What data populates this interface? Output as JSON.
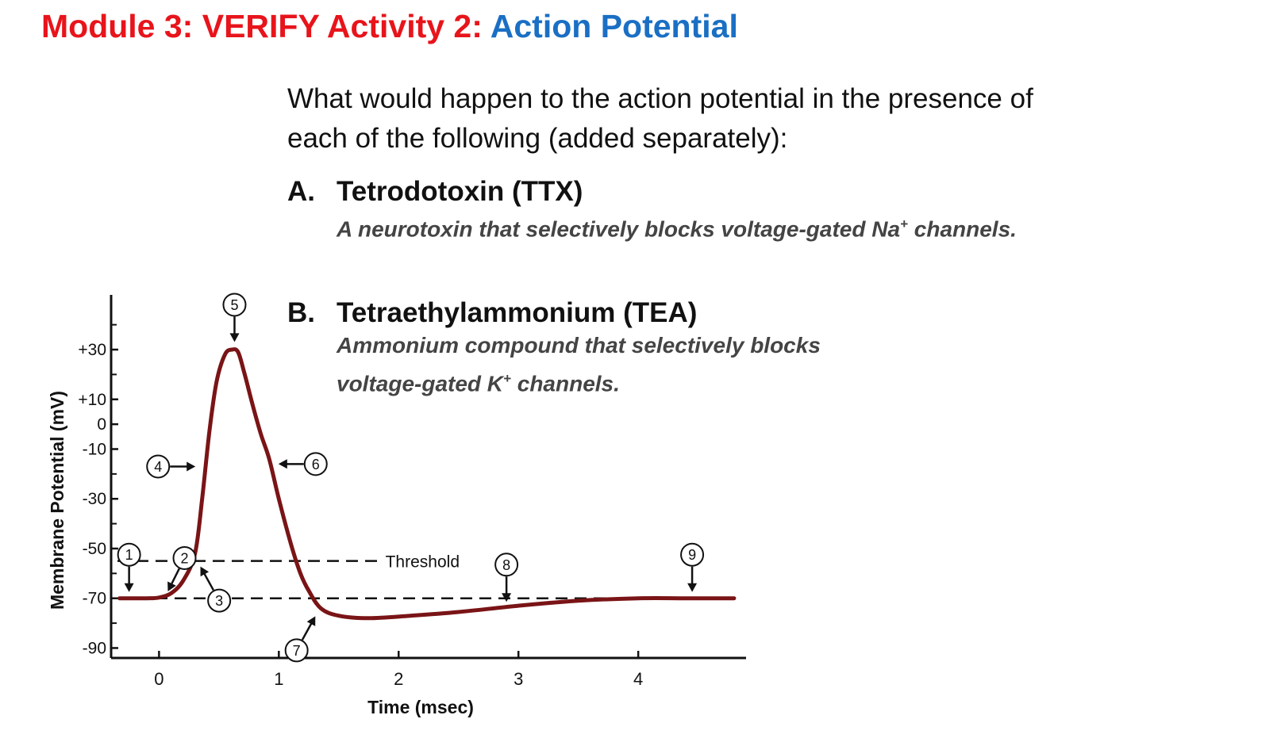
{
  "slide": {
    "title_prefix": "Module 3: VERIFY Activity 2: ",
    "title_accent": "Action Potential",
    "question": "What would happen to the action potential in the presence of each of the following (added separately):",
    "options": [
      {
        "letter": "A.",
        "name": "Tetrodotoxin (TTX)",
        "desc_before": "A neurotoxin that selectively blocks voltage-gated Na",
        "desc_sup": "+",
        "desc_after": " channels."
      },
      {
        "letter": "B.",
        "name": "Tetraethylammonium (TEA)",
        "desc_before": "Ammonium compound that selectively blocks voltage-gated K",
        "desc_sup": "+",
        "desc_after": " channels."
      }
    ]
  },
  "chart_data": {
    "type": "line",
    "xlabel": "Time (msec)",
    "ylabel": "Membrane Potential (mV)",
    "xlim": [
      -0.4,
      4.9
    ],
    "ylim": [
      -94,
      52
    ],
    "x_ticks": [
      0,
      1,
      2,
      3,
      4
    ],
    "x_tick_labels": [
      "0",
      "1",
      "2",
      "3",
      "4"
    ],
    "y_ticks": [
      30,
      10,
      0,
      -10,
      -30,
      -50,
      -70,
      -90
    ],
    "y_tick_labels": [
      "+30",
      "+10",
      "0",
      "-10",
      "-30",
      "-50",
      "-70",
      "-90"
    ],
    "y_minor_ticks": [
      40,
      20,
      -20,
      -40,
      -60,
      -80
    ],
    "series": [
      {
        "color": "#7a1416",
        "x": [
          -0.33,
          -0.1,
          0.0,
          0.1,
          0.2,
          0.3,
          0.36,
          0.42,
          0.48,
          0.55,
          0.61,
          0.66,
          0.71,
          0.78,
          0.85,
          0.92,
          1.0,
          1.1,
          1.18,
          1.25,
          1.35,
          1.5,
          1.75,
          2.1,
          2.5,
          3.0,
          3.5,
          4.0,
          4.4,
          4.8
        ],
        "y": [
          -70,
          -70,
          -69.7,
          -68,
          -63,
          -52,
          -30,
          -3,
          17,
          28,
          30,
          29,
          21,
          8,
          -4,
          -14,
          -30,
          -48,
          -60,
          -67,
          -74,
          -77,
          -78,
          -77,
          -75.5,
          -73,
          -71,
          -70,
          -70,
          -70
        ]
      }
    ],
    "reference_lines": [
      {
        "y": -55,
        "label": "Threshold",
        "style": "dashed",
        "x_end": 1.85
      },
      {
        "y": -70,
        "label": "",
        "style": "dashed",
        "x_end": 3.8
      }
    ],
    "callouts": [
      {
        "num": "1",
        "x": -0.25,
        "y": -70,
        "dir": "down"
      },
      {
        "num": "2",
        "x": 0.05,
        "y": -69.5,
        "dir": "down-left"
      },
      {
        "num": "3",
        "x": 0.32,
        "y": -55,
        "dir": "up-left"
      },
      {
        "num": "4",
        "x": 0.37,
        "y": -17,
        "dir": "right"
      },
      {
        "num": "5",
        "x": 0.63,
        "y": 30.5,
        "dir": "down"
      },
      {
        "num": "6",
        "x": 0.93,
        "y": -16,
        "dir": "left"
      },
      {
        "num": "7",
        "x": 1.33,
        "y": -75,
        "dir": "up-right"
      },
      {
        "num": "8",
        "x": 2.9,
        "y": -74,
        "dir": "down"
      },
      {
        "num": "9",
        "x": 4.45,
        "y": -70,
        "dir": "down"
      }
    ]
  }
}
